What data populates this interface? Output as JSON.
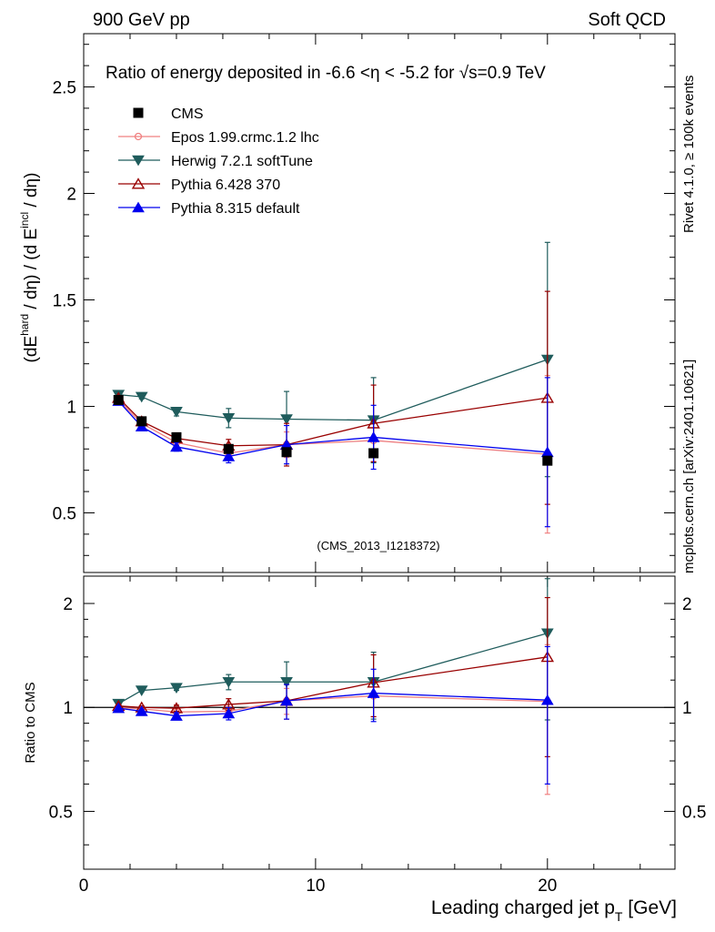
{
  "header": {
    "left": "900 GeV pp",
    "right": "Soft QCD"
  },
  "side_text": {
    "rivet": "Rivet 4.1.0, ≥ 100k events",
    "mcplots": "mcplots.cern.ch [arXiv:2401.10621]"
  },
  "chart_data": {
    "type": "line",
    "title_parts": {
      "pre": "Ratio of energy deposited in -6.6 <",
      "eta": "η",
      "mid": " < -5.2 for ",
      "root": "√s",
      "post": "=0.9 TeV"
    },
    "analysis_id": "(CMS_2013_I1218372)",
    "ylabel": {
      "p1": "(dE",
      "sup1": "hard",
      "p2": " / dη) / (d E",
      "sup2": "incl",
      "p3": " / dη)"
    },
    "ratio_ylabel": "Ratio to CMS",
    "xlabel": {
      "main": "Leading charged jet p",
      "sub": "T",
      "unit": " [GeV]"
    },
    "xlim": [
      0,
      25.5
    ],
    "ylim_main": [
      0.22,
      2.75
    ],
    "ylim_ratio": [
      0.34,
      2.4
    ],
    "x_ticks": [
      0,
      10,
      20
    ],
    "x_tick_labels": [
      "0",
      "10",
      "20"
    ],
    "y_ticks_main": [
      0.5,
      1,
      1.5,
      2,
      2.5
    ],
    "y_tick_labels_main": [
      "0.5",
      "1",
      "1.5",
      "2",
      "2.5"
    ],
    "y_ticks_ratio": [
      0.5,
      1,
      2
    ],
    "y_tick_labels_ratio": [
      "0.5",
      "1",
      "2"
    ],
    "x": [
      1.5,
      2.5,
      4.0,
      6.25,
      8.75,
      12.5,
      20.0
    ],
    "reference": {
      "name": "CMS",
      "values": [
        1.03,
        0.93,
        0.855,
        0.8,
        0.785,
        0.78,
        0.745
      ],
      "color": "#000000"
    },
    "series": [
      {
        "name": "Epos 1.99.crmc.1.2 lhc",
        "color": "#f08080",
        "marker": "circle-open",
        "values": [
          1.03,
          0.92,
          0.83,
          0.78,
          0.82,
          0.84,
          0.775
        ],
        "errors": [
          0.01,
          0.01,
          0.01,
          0.02,
          0.06,
          0.1,
          0.37
        ],
        "ratio": [
          1.0,
          0.99,
          0.97,
          0.975,
          1.045,
          1.08,
          1.04
        ],
        "ratio_errors": [
          0.01,
          0.01,
          0.02,
          0.03,
          0.09,
          0.14,
          0.48
        ]
      },
      {
        "name": "Herwig 7.2.1 softTune",
        "color": "#1f5c5c",
        "marker": "triangle-down-filled",
        "values": [
          1.055,
          1.045,
          0.975,
          0.945,
          0.94,
          0.935,
          1.22
        ],
        "errors": [
          0.01,
          0.01,
          0.02,
          0.045,
          0.13,
          0.2,
          0.55
        ],
        "ratio": [
          1.025,
          1.12,
          1.14,
          1.185,
          1.185,
          1.185,
          1.64
        ],
        "ratio_errors": [
          0.01,
          0.01,
          0.02,
          0.06,
          0.17,
          0.26,
          0.72
        ]
      },
      {
        "name": "Pythia 6.428 370",
        "color": "#990000",
        "marker": "triangle-up-open",
        "values": [
          1.04,
          0.93,
          0.85,
          0.815,
          0.82,
          0.92,
          1.04
        ],
        "errors": [
          0.01,
          0.01,
          0.02,
          0.03,
          0.1,
          0.18,
          0.5
        ],
        "ratio": [
          1.01,
          1.0,
          0.995,
          1.02,
          1.045,
          1.18,
          1.4
        ],
        "ratio_errors": [
          0.01,
          0.01,
          0.02,
          0.04,
          0.12,
          0.24,
          0.68
        ]
      },
      {
        "name": "Pythia 8.315 default",
        "color": "#0000ee",
        "marker": "triangle-up-filled",
        "values": [
          1.025,
          0.905,
          0.81,
          0.765,
          0.82,
          0.855,
          0.785
        ],
        "errors": [
          0.01,
          0.01,
          0.02,
          0.03,
          0.09,
          0.15,
          0.35
        ],
        "ratio": [
          0.995,
          0.975,
          0.945,
          0.96,
          1.045,
          1.1,
          1.05
        ],
        "ratio_errors": [
          0.01,
          0.01,
          0.02,
          0.04,
          0.12,
          0.19,
          0.45
        ]
      }
    ]
  }
}
